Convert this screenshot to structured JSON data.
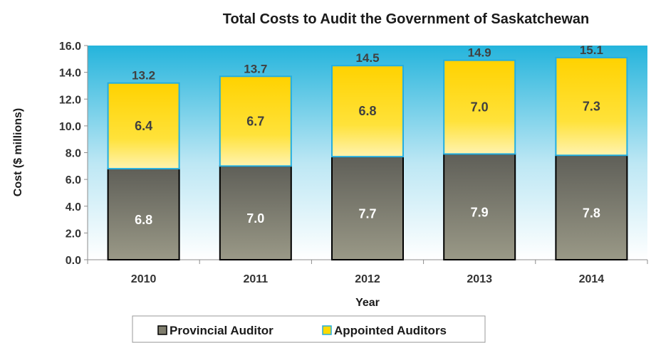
{
  "chart_data": {
    "type": "bar",
    "stacked": true,
    "title": "Total Costs to Audit the Government of Saskatchewan",
    "xlabel": "Year",
    "ylabel": "Cost ($ millions)",
    "ylim": [
      0,
      16
    ],
    "yticks": [
      "0.0",
      "2.0",
      "4.0",
      "6.0",
      "8.0",
      "10.0",
      "12.0",
      "14.0",
      "16.0"
    ],
    "categories": [
      "2010",
      "2011",
      "2012",
      "2013",
      "2014"
    ],
    "series": [
      {
        "name": "Provincial Auditor",
        "values": [
          6.8,
          7.0,
          7.7,
          7.9,
          7.8
        ],
        "labels": [
          "6.8",
          "7.0",
          "7.7",
          "7.9",
          "7.8"
        ],
        "color": "#807e6e"
      },
      {
        "name": "Appointed Auditors",
        "values": [
          6.4,
          6.7,
          6.8,
          7.0,
          7.3
        ],
        "labels": [
          "6.4",
          "6.7",
          "6.8",
          "7.0",
          "7.3"
        ],
        "color": "#ffd900"
      }
    ],
    "totals": [
      "13.2",
      "13.7",
      "14.5",
      "14.9",
      "15.1"
    ],
    "legend_position": "bottom",
    "background_gradient": [
      "#24b4dc",
      "#ffffff"
    ]
  }
}
